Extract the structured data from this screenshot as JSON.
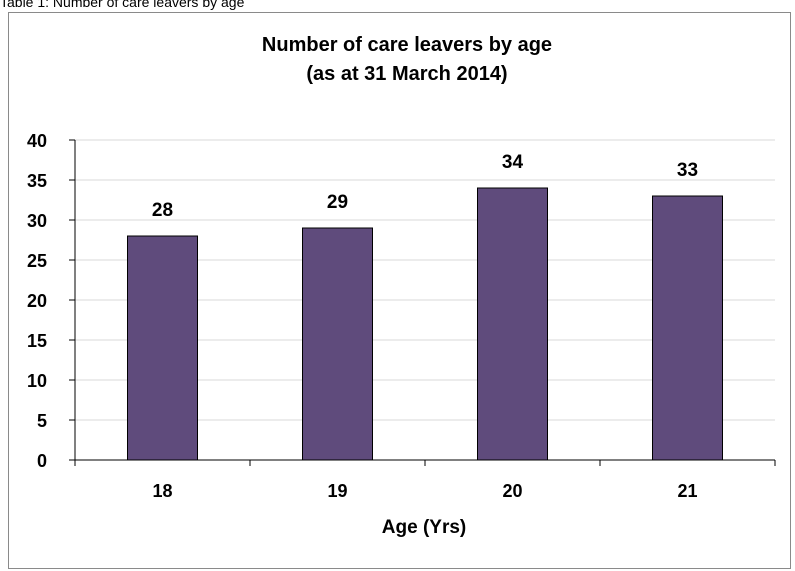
{
  "caption": "Table 1: Number of care leavers by age",
  "chart_data": {
    "type": "bar",
    "title": "Number of care leavers by age",
    "subtitle": "(as at 31 March 2014)",
    "categories": [
      "18",
      "19",
      "20",
      "21"
    ],
    "values": [
      28,
      29,
      34,
      33
    ],
    "data_labels": [
      "28",
      "29",
      "34",
      "33"
    ],
    "xlabel": "Age (Yrs)",
    "ylabel": "",
    "ylim": [
      0,
      40
    ],
    "yticks": [
      "0",
      "5",
      "10",
      "15",
      "20",
      "25",
      "30",
      "35",
      "40"
    ],
    "grid": true,
    "legend": "none",
    "colors": {
      "bar": "#5f4b7c",
      "grid": "#d9d9d9",
      "axis": "#000000"
    }
  }
}
